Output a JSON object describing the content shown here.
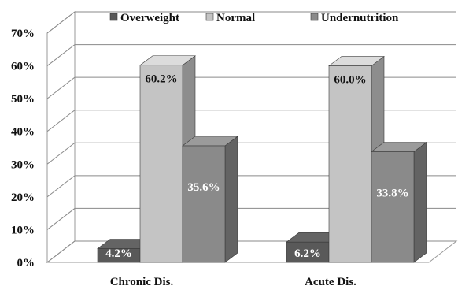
{
  "chart_data": {
    "type": "bar",
    "style": "3d-clustered",
    "categories": [
      "Chronic Dis.",
      "Acute Dis."
    ],
    "series": [
      {
        "name": "Overweight",
        "values": [
          4.2,
          6.2
        ],
        "color": "#595959"
      },
      {
        "name": "Normal",
        "values": [
          60.2,
          60.0
        ],
        "color": "#c4c4c4"
      },
      {
        "name": "Undernutrition",
        "values": [
          35.6,
          33.8
        ],
        "color": "#8a8a8a"
      }
    ],
    "value_labels": [
      [
        "4.2%",
        "6.2%"
      ],
      [
        "60.2%",
        "60.0%"
      ],
      [
        "35.6%",
        "33.8%"
      ]
    ],
    "value_label_colors": [
      "#ffffff",
      "#111111",
      "#ffffff"
    ],
    "y_ticks": [
      "0%",
      "10%",
      "20%",
      "30%",
      "40%",
      "50%",
      "60%",
      "70%"
    ],
    "ylim": [
      0,
      70
    ],
    "grid": true,
    "legend_position": "top",
    "title": "",
    "xlabel": "",
    "ylabel": ""
  }
}
